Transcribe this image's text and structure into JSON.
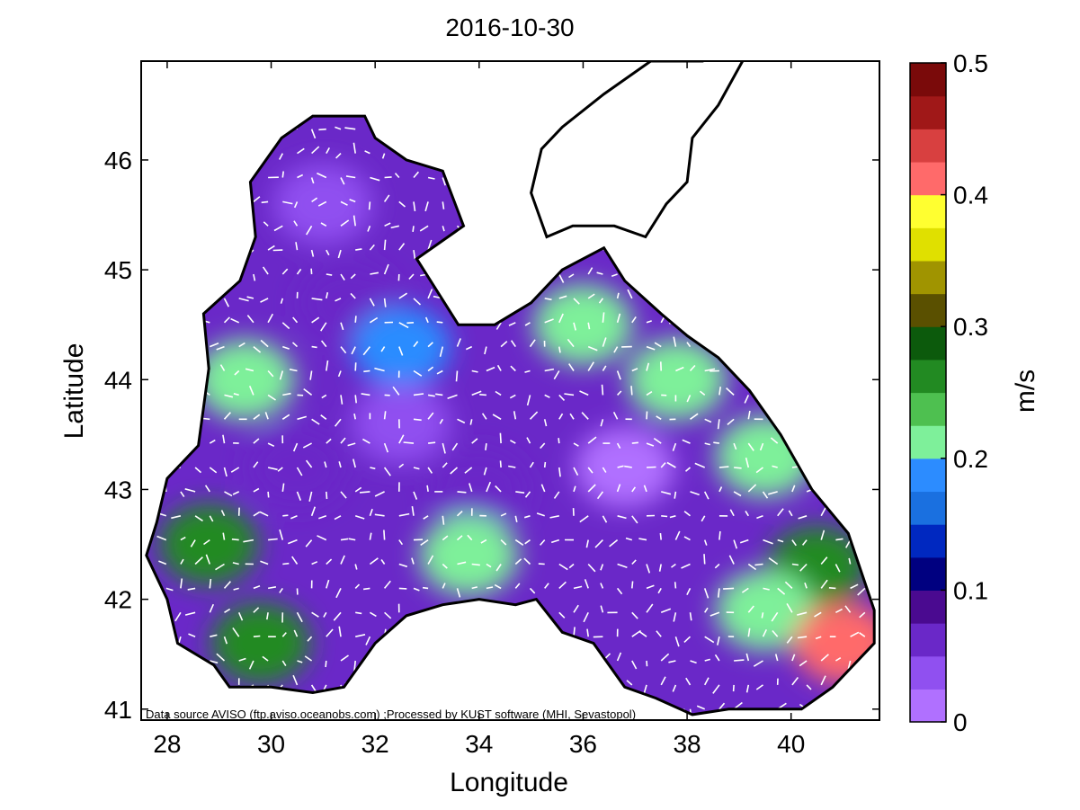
{
  "chart_data": {
    "type": "heatmap",
    "title": "2016-10-30",
    "xlabel": "Longitude",
    "ylabel": "Latitude",
    "xlim": [
      27.5,
      41.7
    ],
    "ylim": [
      40.9,
      46.9
    ],
    "x_ticks": [
      "28",
      "30",
      "32",
      "34",
      "36",
      "38",
      "40"
    ],
    "y_ticks": [
      "41",
      "42",
      "43",
      "44",
      "45",
      "46"
    ],
    "colorbar": {
      "label": "m/s",
      "range": [
        0,
        0.5
      ],
      "ticks": [
        "0",
        "0.1",
        "0.2",
        "0.3",
        "0.4",
        "0.5"
      ],
      "colors": [
        "#b070ff",
        "#9050f0",
        "#6a28c8",
        "#4a0a90",
        "#000080",
        "#0028c0",
        "#1a70e0",
        "#2c8cff",
        "#7ef09a",
        "#4ec050",
        "#228a22",
        "#0c5a0c",
        "#5a5000",
        "#a09400",
        "#e0e000",
        "#ffff30",
        "#ff6a6a",
        "#d84040",
        "#a01818",
        "#7a0a0a"
      ]
    },
    "speed_field": {
      "description_values": "approximate current speed in m/s over the basin, read from the color fill",
      "regions": [
        {
          "lon": 31.0,
          "lat": 45.6,
          "speed": 0.03
        },
        {
          "lon": 31.5,
          "lat": 44.7,
          "speed": 0.06
        },
        {
          "lon": 32.5,
          "lat": 44.3,
          "speed": 0.19
        },
        {
          "lon": 29.5,
          "lat": 44.0,
          "speed": 0.2
        },
        {
          "lon": 28.8,
          "lat": 42.5,
          "speed": 0.25
        },
        {
          "lon": 30.5,
          "lat": 43.2,
          "speed": 0.05
        },
        {
          "lon": 32.5,
          "lat": 43.6,
          "speed": 0.03
        },
        {
          "lon": 34.0,
          "lat": 43.0,
          "speed": 0.05
        },
        {
          "lon": 33.8,
          "lat": 42.4,
          "speed": 0.2
        },
        {
          "lon": 36.8,
          "lat": 43.2,
          "speed": 0.02
        },
        {
          "lon": 37.8,
          "lat": 44.0,
          "speed": 0.2
        },
        {
          "lon": 39.5,
          "lat": 43.3,
          "speed": 0.22
        },
        {
          "lon": 40.5,
          "lat": 42.3,
          "speed": 0.25
        },
        {
          "lon": 39.5,
          "lat": 41.9,
          "speed": 0.22
        },
        {
          "lon": 41.0,
          "lat": 41.6,
          "speed": 0.4
        },
        {
          "lon": 29.8,
          "lat": 41.6,
          "speed": 0.25
        },
        {
          "lon": 36.0,
          "lat": 44.5,
          "speed": 0.2
        }
      ]
    }
  },
  "credit": "Data source AVISO (ftp.aviso.oceanobs.com) ;Processed by KUST software (MHI, Sevastopol)"
}
